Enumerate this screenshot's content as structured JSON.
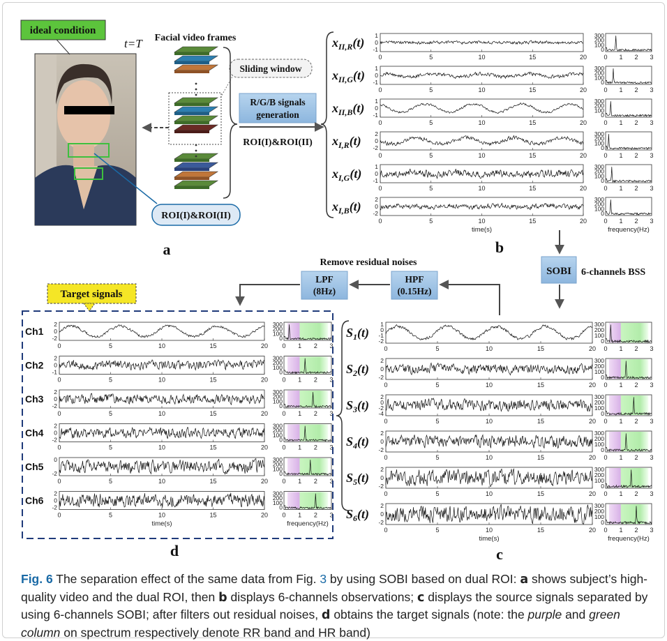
{
  "panel_a": {
    "ideal_label": "ideal condition",
    "t_label": "t=T",
    "facial_frames_title": "Facial video frames",
    "sliding_window": "Sliding window",
    "roi_label": "ROI(I)&ROI(II)",
    "panel_letter": "a"
  },
  "flow": {
    "rgb_gen_line1": "R/G/B signals",
    "rgb_gen_line2": "generation",
    "roi_text": "ROI(I)&ROI(II)",
    "sobi": "SOBI",
    "bss": "6-channels BSS",
    "remove_noise": "Remove residual noises",
    "lpf_line1": "LPF",
    "lpf_line2": "(8Hz)",
    "hpf_line1": "HPF",
    "hpf_line2": "(0.15Hz)",
    "target_signals": "Target signals"
  },
  "panel_b": {
    "letter": "b",
    "rows": [
      {
        "label_main": "x",
        "label_sub": "II,R",
        "ticks": [
          "1",
          "0",
          "-1"
        ]
      },
      {
        "label_main": "x",
        "label_sub": "II,G",
        "ticks": [
          "1",
          "0",
          "-1"
        ]
      },
      {
        "label_main": "x",
        "label_sub": "II,B",
        "ticks": [
          "1",
          "0",
          "-1"
        ]
      },
      {
        "label_main": "x",
        "label_sub": "I,R",
        "ticks": [
          "2",
          "0",
          "-2"
        ]
      },
      {
        "label_main": "x",
        "label_sub": "I,G",
        "ticks": [
          "1",
          "0",
          "-1"
        ]
      },
      {
        "label_main": "x",
        "label_sub": "I,B",
        "ticks": [
          "2",
          "0",
          "-2"
        ]
      }
    ],
    "time_ticks": [
      "0",
      "5",
      "10",
      "15",
      "20"
    ],
    "freq_ticks": [
      "0",
      "1",
      "2",
      "3"
    ],
    "spec_ticks": [
      "300",
      "200",
      "100",
      "0"
    ],
    "time_label": "time(s)",
    "freq_label": "frequency(Hz)"
  },
  "panel_c": {
    "letter": "c",
    "rows": [
      {
        "label_main": "S",
        "label_sub": "1",
        "ticks": [
          "1",
          "0",
          "-1",
          "-2"
        ]
      },
      {
        "label_main": "S",
        "label_sub": "2",
        "ticks": [
          "2",
          "0",
          "-2"
        ]
      },
      {
        "label_main": "S",
        "label_sub": "3",
        "ticks": [
          "2",
          "0",
          "-2",
          "-4"
        ]
      },
      {
        "label_main": "S",
        "label_sub": "4",
        "ticks": [
          "2",
          "0",
          "-2"
        ]
      },
      {
        "label_main": "S",
        "label_sub": "5",
        "ticks": [
          "2",
          "0",
          "-2"
        ]
      },
      {
        "label_main": "S",
        "label_sub": "6",
        "ticks": [
          "2",
          "0",
          "-2"
        ]
      }
    ],
    "time_ticks": [
      "0",
      "5",
      "10",
      "15",
      "20"
    ],
    "freq_ticks": [
      "0",
      "1",
      "2",
      "3"
    ],
    "spec_ticks": [
      "300",
      "200",
      "100",
      "0"
    ],
    "time_label": "time(s)",
    "freq_label": "frequency(Hz)"
  },
  "panel_d": {
    "letter": "d",
    "rows": [
      {
        "label": "Ch1",
        "ticks": [
          "2",
          "0",
          "-2"
        ]
      },
      {
        "label": "Ch2",
        "ticks": [
          "2",
          "0",
          "-1"
        ]
      },
      {
        "label": "Ch3",
        "ticks": [
          "2",
          "0",
          "-2"
        ]
      },
      {
        "label": "Ch4",
        "ticks": [
          "2",
          "0",
          "-2"
        ]
      },
      {
        "label": "Ch5",
        "ticks": [
          "0",
          "-2"
        ]
      },
      {
        "label": "Ch6",
        "ticks": [
          "2",
          "0",
          "-2"
        ]
      }
    ],
    "time_ticks": [
      "0",
      "5",
      "10",
      "15",
      "20"
    ],
    "freq_ticks": [
      "0",
      "1",
      "2",
      "3"
    ],
    "spec_ticks": [
      "300",
      "200",
      "100",
      "0"
    ],
    "time_label": "time(s)",
    "freq_label": "frequency(Hz)"
  },
  "colors": {
    "accent_blue": "#1a6aa6",
    "ideal_green": "#5cc43c",
    "box_blue": "#9dc3e6",
    "target_yellow": "#f5e626",
    "dash_navy": "#1f3a7a",
    "rr_band": "#d9b8e8",
    "hr_band": "#b8f0b0"
  },
  "caption": {
    "fig_label": "Fig. 6",
    "t1": " The separation effect of the same data from Fig. ",
    "ref": "3",
    "t2": " by using SOBI based on dual ROI: ",
    "a": "a",
    "t3": " shows subject’s high-quality video and the dual ROI, then ",
    "b": "b",
    "t4": " displays 6-channels observations; ",
    "c": "c",
    "t5": " displays the source signals separated by using 6-channels SOBI; after filters out residual noises, ",
    "d": "d",
    "t6": " obtains the target signals (note: the ",
    "purple": "purple",
    "t7": " and ",
    "green": "green column",
    "t8": " on spectrum respectively denote RR band and HR band)"
  }
}
